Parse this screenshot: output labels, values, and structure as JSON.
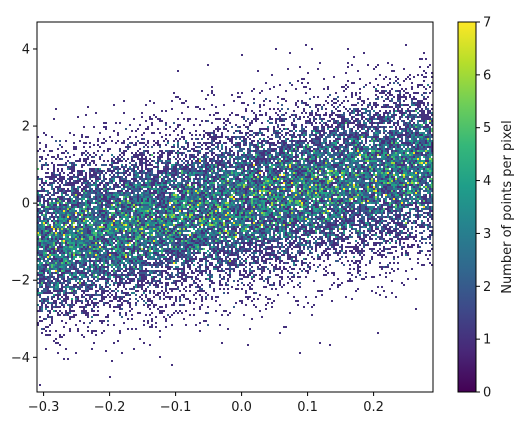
{
  "chart_data": {
    "type": "heatmap",
    "subtype": "density-scatter",
    "title": "",
    "xlabel": "",
    "ylabel": "",
    "xlim": [
      -0.31,
      0.29
    ],
    "ylim": [
      -4.9,
      4.7
    ],
    "xticks": [
      -0.3,
      -0.2,
      -0.1,
      0.0,
      0.1,
      0.2
    ],
    "xtick_labels": [
      "−0.3",
      "−0.2",
      "−0.1",
      "0.0",
      "0.1",
      "0.2"
    ],
    "yticks": [
      -4,
      -2,
      0,
      2,
      4
    ],
    "ytick_labels": [
      "−4",
      "−2",
      "0",
      "2",
      "4"
    ],
    "grid": false,
    "trend": {
      "slope": 3.5,
      "intercept": 0.0,
      "spread_sd": 1.0
    },
    "colorbar": {
      "label": "Number of points per pixel",
      "range": [
        0,
        7
      ],
      "ticks": [
        0,
        1,
        2,
        3,
        4,
        5,
        6,
        7
      ],
      "tick_labels": [
        "0",
        "1",
        "2",
        "3",
        "4",
        "5",
        "6",
        "7"
      ],
      "colormap": "viridis"
    },
    "colormap_stops": [
      "#440154",
      "#482878",
      "#3e4989",
      "#31688e",
      "#26828e",
      "#1f9e89",
      "#35b779",
      "#6ece58",
      "#b5de2b",
      "#fde725"
    ]
  }
}
